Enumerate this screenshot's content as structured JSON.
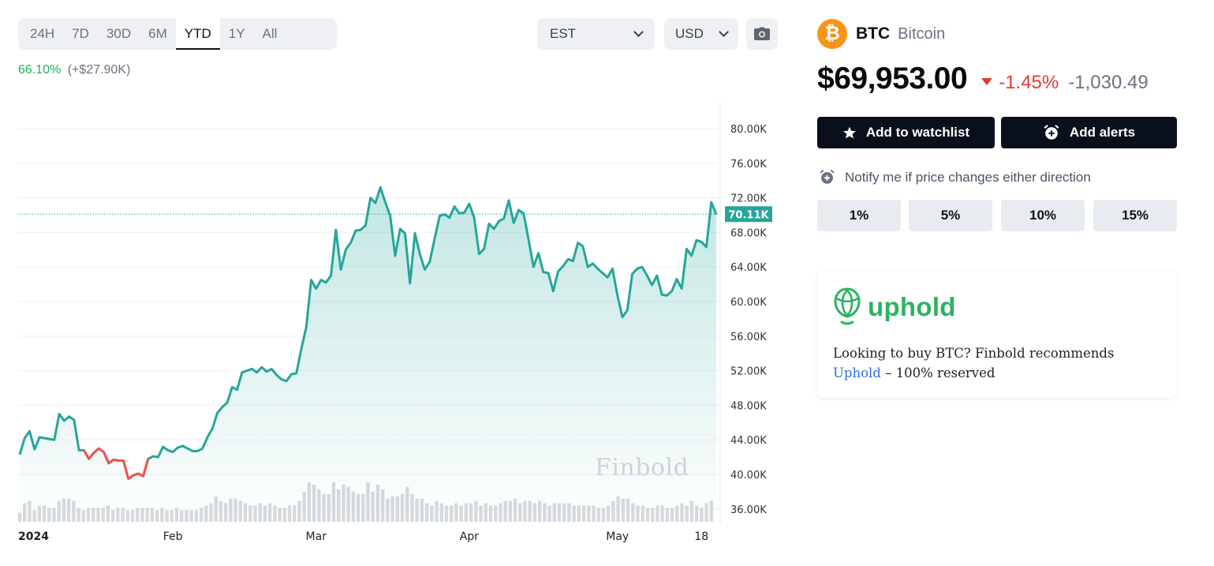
{
  "ranges": [
    {
      "label": "24H",
      "active": false
    },
    {
      "label": "7D",
      "active": false
    },
    {
      "label": "30D",
      "active": false
    },
    {
      "label": "6M",
      "active": false
    },
    {
      "label": "YTD",
      "active": true
    },
    {
      "label": "1Y",
      "active": false
    },
    {
      "label": "All",
      "active": false
    }
  ],
  "timezone_select": {
    "value": "EST"
  },
  "currency_select": {
    "value": "USD"
  },
  "camera_icon": "camera-icon",
  "change": {
    "percent": "66.10%",
    "absolute": "(+$27.90K)"
  },
  "watermark": "Finbold",
  "coin": {
    "symbol": "BTC",
    "name": "Bitcoin",
    "logo_glyph": "₿",
    "logo_color": "#f7931a"
  },
  "price": {
    "value": "$69,953.00",
    "change_pct": "-1.45%",
    "change_abs": "-1,030.49"
  },
  "buttons": {
    "watchlist": "Add to watchlist",
    "alerts": "Add alerts"
  },
  "notify": {
    "text": "Notify me if price changes either direction",
    "options": [
      "1%",
      "5%",
      "10%",
      "15%"
    ]
  },
  "ad": {
    "brand": "uphold",
    "text": "Looking to buy BTC? Finbold recommends",
    "link": "Uphold",
    "suffix": " – 100% reserved"
  },
  "colors": {
    "up": "#26a69a",
    "down": "#ef5350",
    "accent_green": "#22b35e"
  },
  "chart_data": {
    "type": "area",
    "current_label": "70.11K",
    "current_value": 70110,
    "ylim": [
      35000,
      82000
    ],
    "y_ticks": [
      {
        "value": 80000,
        "label": "80.00K"
      },
      {
        "value": 76000,
        "label": "76.00K"
      },
      {
        "value": 72000,
        "label": "72.00K"
      },
      {
        "value": 68000,
        "label": "68.00K"
      },
      {
        "value": 64000,
        "label": "64.00K"
      },
      {
        "value": 60000,
        "label": "60.00K"
      },
      {
        "value": 56000,
        "label": "56.00K"
      },
      {
        "value": 52000,
        "label": "52.00K"
      },
      {
        "value": 48000,
        "label": "48.00K"
      },
      {
        "value": 44000,
        "label": "44.00K"
      },
      {
        "value": 40000,
        "label": "40.00K"
      },
      {
        "value": 36000,
        "label": "36.00K"
      }
    ],
    "x_ticks": [
      {
        "day": 0,
        "label": "2024"
      },
      {
        "day": 31,
        "label": "Feb"
      },
      {
        "day": 60,
        "label": "Mar"
      },
      {
        "day": 91,
        "label": "Apr"
      },
      {
        "day": 121,
        "label": "May"
      },
      {
        "day": 138,
        "label": "18"
      }
    ],
    "x_range": [
      0,
      141
    ],
    "series": [
      {
        "day": 0,
        "price": 42300
      },
      {
        "day": 1,
        "price": 44200
      },
      {
        "day": 2,
        "price": 45000
      },
      {
        "day": 3,
        "price": 42900
      },
      {
        "day": 4,
        "price": 44300
      },
      {
        "day": 5,
        "price": 44200
      },
      {
        "day": 6,
        "price": 44100
      },
      {
        "day": 7,
        "price": 44000
      },
      {
        "day": 8,
        "price": 47000
      },
      {
        "day": 9,
        "price": 46200
      },
      {
        "day": 10,
        "price": 46700
      },
      {
        "day": 11,
        "price": 46300
      },
      {
        "day": 12,
        "price": 42800
      },
      {
        "day": 13,
        "price": 42800
      },
      {
        "day": 14,
        "price": 41800
      },
      {
        "day": 15,
        "price": 42500
      },
      {
        "day": 16,
        "price": 43000
      },
      {
        "day": 17,
        "price": 42600
      },
      {
        "day": 18,
        "price": 41300
      },
      {
        "day": 19,
        "price": 41700
      },
      {
        "day": 20,
        "price": 41600
      },
      {
        "day": 21,
        "price": 41600
      },
      {
        "day": 22,
        "price": 39500
      },
      {
        "day": 23,
        "price": 39900
      },
      {
        "day": 24,
        "price": 40100
      },
      {
        "day": 25,
        "price": 39800
      },
      {
        "day": 26,
        "price": 41800
      },
      {
        "day": 27,
        "price": 42100
      },
      {
        "day": 28,
        "price": 42000
      },
      {
        "day": 29,
        "price": 43200
      },
      {
        "day": 30,
        "price": 42800
      },
      {
        "day": 31,
        "price": 42600
      },
      {
        "day": 32,
        "price": 43100
      },
      {
        "day": 33,
        "price": 43300
      },
      {
        "day": 34,
        "price": 43000
      },
      {
        "day": 35,
        "price": 42700
      },
      {
        "day": 36,
        "price": 42700
      },
      {
        "day": 37,
        "price": 43000
      },
      {
        "day": 38,
        "price": 44300
      },
      {
        "day": 39,
        "price": 45300
      },
      {
        "day": 40,
        "price": 47100
      },
      {
        "day": 41,
        "price": 47800
      },
      {
        "day": 42,
        "price": 48300
      },
      {
        "day": 43,
        "price": 50100
      },
      {
        "day": 44,
        "price": 49800
      },
      {
        "day": 45,
        "price": 51800
      },
      {
        "day": 46,
        "price": 52000
      },
      {
        "day": 47,
        "price": 52200
      },
      {
        "day": 48,
        "price": 51800
      },
      {
        "day": 49,
        "price": 52400
      },
      {
        "day": 50,
        "price": 51900
      },
      {
        "day": 51,
        "price": 52200
      },
      {
        "day": 52,
        "price": 51500
      },
      {
        "day": 53,
        "price": 51000
      },
      {
        "day": 54,
        "price": 50800
      },
      {
        "day": 55,
        "price": 51600
      },
      {
        "day": 56,
        "price": 51700
      },
      {
        "day": 57,
        "price": 54500
      },
      {
        "day": 58,
        "price": 57000
      },
      {
        "day": 59,
        "price": 62500
      },
      {
        "day": 60,
        "price": 61500
      },
      {
        "day": 61,
        "price": 62500
      },
      {
        "day": 62,
        "price": 62200
      },
      {
        "day": 63,
        "price": 63000
      },
      {
        "day": 64,
        "price": 68300
      },
      {
        "day": 65,
        "price": 63700
      },
      {
        "day": 66,
        "price": 66000
      },
      {
        "day": 67,
        "price": 66800
      },
      {
        "day": 68,
        "price": 68200
      },
      {
        "day": 69,
        "price": 68300
      },
      {
        "day": 70,
        "price": 68800
      },
      {
        "day": 71,
        "price": 72000
      },
      {
        "day": 72,
        "price": 71400
      },
      {
        "day": 73,
        "price": 73200
      },
      {
        "day": 74,
        "price": 71500
      },
      {
        "day": 75,
        "price": 69900
      },
      {
        "day": 76,
        "price": 65300
      },
      {
        "day": 77,
        "price": 68400
      },
      {
        "day": 78,
        "price": 67900
      },
      {
        "day": 79,
        "price": 62100
      },
      {
        "day": 80,
        "price": 67900
      },
      {
        "day": 81,
        "price": 65500
      },
      {
        "day": 82,
        "price": 63700
      },
      {
        "day": 83,
        "price": 64600
      },
      {
        "day": 84,
        "price": 67300
      },
      {
        "day": 85,
        "price": 69900
      },
      {
        "day": 86,
        "price": 70100
      },
      {
        "day": 87,
        "price": 69700
      },
      {
        "day": 88,
        "price": 71000
      },
      {
        "day": 89,
        "price": 70200
      },
      {
        "day": 90,
        "price": 70300
      },
      {
        "day": 91,
        "price": 71300
      },
      {
        "day": 92,
        "price": 69700
      },
      {
        "day": 93,
        "price": 65500
      },
      {
        "day": 94,
        "price": 66100
      },
      {
        "day": 95,
        "price": 69000
      },
      {
        "day": 96,
        "price": 68400
      },
      {
        "day": 97,
        "price": 69300
      },
      {
        "day": 98,
        "price": 69600
      },
      {
        "day": 99,
        "price": 71700
      },
      {
        "day": 100,
        "price": 69100
      },
      {
        "day": 101,
        "price": 70600
      },
      {
        "day": 102,
        "price": 70200
      },
      {
        "day": 103,
        "price": 67200
      },
      {
        "day": 104,
        "price": 64000
      },
      {
        "day": 105,
        "price": 65600
      },
      {
        "day": 106,
        "price": 63400
      },
      {
        "day": 107,
        "price": 63300
      },
      {
        "day": 108,
        "price": 61200
      },
      {
        "day": 109,
        "price": 63500
      },
      {
        "day": 110,
        "price": 64100
      },
      {
        "day": 111,
        "price": 64900
      },
      {
        "day": 112,
        "price": 64700
      },
      {
        "day": 113,
        "price": 66800
      },
      {
        "day": 114,
        "price": 66400
      },
      {
        "day": 115,
        "price": 64000
      },
      {
        "day": 116,
        "price": 64400
      },
      {
        "day": 117,
        "price": 63800
      },
      {
        "day": 118,
        "price": 63300
      },
      {
        "day": 119,
        "price": 62800
      },
      {
        "day": 120,
        "price": 63800
      },
      {
        "day": 121,
        "price": 60700
      },
      {
        "day": 122,
        "price": 58200
      },
      {
        "day": 123,
        "price": 59000
      },
      {
        "day": 124,
        "price": 63200
      },
      {
        "day": 125,
        "price": 63800
      },
      {
        "day": 126,
        "price": 64000
      },
      {
        "day": 127,
        "price": 63000
      },
      {
        "day": 128,
        "price": 61900
      },
      {
        "day": 129,
        "price": 63000
      },
      {
        "day": 130,
        "price": 60800
      },
      {
        "day": 131,
        "price": 60700
      },
      {
        "day": 132,
        "price": 61200
      },
      {
        "day": 133,
        "price": 62600
      },
      {
        "day": 134,
        "price": 61500
      },
      {
        "day": 135,
        "price": 66100
      },
      {
        "day": 136,
        "price": 65300
      },
      {
        "day": 137,
        "price": 67100
      },
      {
        "day": 138,
        "price": 66900
      },
      {
        "day": 139,
        "price": 66300
      },
      {
        "day": 140,
        "price": 71500
      },
      {
        "day": 141,
        "price": 70100
      }
    ],
    "down_segments": [
      [
        13,
        17
      ],
      [
        17,
        22
      ],
      [
        22,
        26
      ]
    ],
    "volume": [
      4,
      8,
      9,
      5,
      7,
      7,
      6,
      6,
      9,
      10,
      10,
      9,
      6,
      5,
      6,
      6,
      6,
      6,
      7,
      5,
      6,
      6,
      5,
      5,
      6,
      6,
      6,
      6,
      5,
      6,
      5,
      5,
      6,
      5,
      5,
      5,
      5,
      6,
      7,
      8,
      11,
      9,
      8,
      10,
      10,
      9,
      8,
      7,
      7,
      8,
      7,
      8,
      7,
      6,
      6,
      7,
      7,
      9,
      13,
      17,
      16,
      14,
      12,
      12,
      17,
      14,
      16,
      15,
      13,
      12,
      12,
      17,
      13,
      16,
      14,
      10,
      11,
      11,
      12,
      15,
      12,
      10,
      10,
      8,
      7,
      9,
      8,
      7,
      7,
      8,
      7,
      8,
      8,
      9,
      7,
      8,
      7,
      7,
      8,
      9,
      9,
      10,
      8,
      9,
      9,
      8,
      9,
      8,
      7,
      8,
      8,
      8,
      8,
      7,
      7,
      7,
      7,
      7,
      6,
      6,
      7,
      9,
      11,
      10,
      10,
      8,
      7,
      7,
      6,
      6,
      7,
      7,
      6,
      6,
      7,
      8,
      7,
      9,
      7,
      6,
      8,
      9
    ]
  }
}
